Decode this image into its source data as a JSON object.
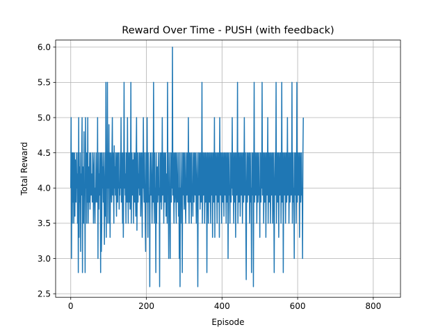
{
  "chart_data": {
    "type": "line",
    "title": "Reward Over Time - PUSH (with feedback)",
    "xlabel": "Episode",
    "ylabel": "Total Reward",
    "xlim": [
      -40,
      872
    ],
    "ylim": [
      2.45,
      6.1
    ],
    "xticks": [
      0,
      200,
      400,
      600,
      800
    ],
    "yticks": [
      2.5,
      3.0,
      3.5,
      4.0,
      4.5,
      5.0,
      5.5,
      6.0
    ],
    "grid": true,
    "line_color": "#1f77b4",
    "series": [
      {
        "x_start": 0,
        "x_step": 1,
        "values": [
          4.0,
          5.0,
          3.0,
          4.5,
          3.5,
          4.5,
          3.8,
          4.5,
          3.5,
          4.0,
          4.5,
          3.6,
          4.4,
          4.0,
          3.8,
          4.5,
          4.0,
          4.2,
          3.5,
          4.5,
          2.8,
          5.0,
          3.3,
          4.3,
          3.8,
          4.5,
          3.1,
          4.2,
          3.9,
          4.5,
          5.0,
          2.8,
          4.3,
          4.0,
          3.5,
          4.8,
          3.9,
          4.0,
          2.8,
          5.0,
          4.0,
          4.5,
          3.5,
          4.5,
          3.8,
          5.0,
          3.5,
          4.0,
          4.3,
          3.8,
          4.5,
          3.7,
          4.0,
          4.5,
          3.9,
          4.0,
          4.2,
          3.8,
          4.5,
          4.3,
          3.5,
          4.0,
          4.5,
          3.9,
          3.5,
          4.0,
          3.8,
          4.5,
          4.0,
          3.8,
          4.0,
          5.0,
          3.0,
          4.5,
          3.7,
          4.2,
          3.9,
          4.5,
          4.0,
          2.8,
          4.5,
          3.1,
          3.5,
          4.5,
          4.0,
          4.3,
          3.8,
          4.5,
          3.9,
          3.2,
          4.0,
          4.5,
          3.6,
          5.5,
          3.3,
          4.5,
          4.0,
          5.5,
          3.5,
          4.5,
          4.0,
          4.9,
          3.5,
          4.5,
          3.3,
          4.0,
          4.5,
          4.0,
          3.8,
          4.5,
          5.0,
          3.9,
          4.5,
          4.0,
          3.5,
          4.6,
          4.0,
          4.3,
          3.9,
          4.5,
          4.0,
          3.6,
          4.5,
          4.0,
          3.8,
          4.5,
          4.0,
          4.5,
          3.7,
          4.0,
          3.9,
          4.5,
          4.0,
          5.0,
          3.8,
          4.5,
          4.0,
          3.5,
          4.5,
          3.3,
          4.0,
          5.5,
          4.0,
          4.5,
          3.9,
          4.2,
          3.5,
          4.5,
          4.0,
          3.8,
          5.0,
          4.1,
          3.5,
          4.5,
          4.0,
          3.8,
          4.5,
          3.7,
          4.0,
          5.5,
          3.5,
          4.0,
          4.5,
          3.9,
          4.0,
          4.4,
          3.5,
          4.5,
          4.0,
          3.8,
          4.5,
          4.0,
          3.6,
          4.5,
          5.0,
          3.4,
          4.0,
          4.5,
          3.8,
          4.2,
          4.0,
          4.5,
          3.9,
          4.0,
          4.5,
          3.6,
          4.0,
          4.5,
          4.0,
          3.3,
          4.5,
          4.0,
          5.0,
          4.1,
          3.8,
          4.5,
          4.0,
          3.5,
          3.1,
          4.5,
          4.0,
          3.8,
          5.0,
          4.0,
          3.3,
          4.5,
          4.2,
          3.8,
          3.9,
          2.6,
          4.5,
          4.0,
          3.9,
          4.5,
          4.0,
          3.5,
          4.0,
          4.5,
          3.8,
          5.5,
          4.0,
          3.5,
          4.5,
          3.9,
          4.0,
          2.8,
          4.5,
          3.5,
          4.0,
          4.3,
          3.8,
          4.0,
          4.5,
          3.9,
          4.0,
          2.6,
          4.5,
          3.8,
          4.0,
          4.5,
          3.7,
          4.0,
          5.0,
          3.9,
          4.0,
          4.5,
          3.5,
          4.0,
          4.5,
          3.8,
          4.0,
          4.5,
          3.6,
          4.2,
          4.0,
          3.5,
          5.5,
          4.0,
          3.9,
          3.0,
          4.5,
          4.0,
          3.7,
          3.0,
          4.5,
          4.0,
          3.8,
          4.5,
          4.0,
          6.0,
          3.9,
          4.5,
          4.0,
          3.5,
          4.5,
          3.8,
          4.0,
          4.5,
          3.9,
          3.5,
          4.5,
          4.0,
          3.8,
          4.0,
          4.5,
          3.6,
          4.0,
          3.0,
          4.5,
          2.6,
          4.0,
          3.5,
          4.5,
          4.0,
          3.8,
          2.8,
          4.5,
          3.9,
          4.0,
          4.5,
          3.7,
          4.0,
          4.5,
          3.8,
          3.5,
          4.0,
          4.5,
          3.9,
          4.0,
          4.5,
          3.8,
          5.0,
          4.0,
          3.5,
          4.5,
          4.0,
          3.8,
          4.5,
          4.0,
          3.5,
          4.5,
          3.9,
          4.0,
          3.6,
          4.5,
          4.0,
          3.8,
          4.5,
          4.0,
          3.9,
          4.5,
          4.0,
          3.5,
          4.0,
          4.5,
          3.8,
          2.6,
          4.0,
          4.5,
          3.9,
          4.0,
          4.5,
          3.7,
          4.0,
          4.5,
          3.8,
          4.0,
          5.5,
          3.5,
          4.0,
          4.5,
          3.9,
          4.0,
          4.5,
          3.5,
          4.0,
          4.5,
          3.8,
          4.0,
          4.5,
          2.8,
          4.0,
          4.5,
          3.9,
          3.5,
          4.5,
          4.0,
          3.8,
          4.5,
          4.0,
          3.5,
          4.5,
          3.9,
          4.0,
          4.5,
          3.3,
          4.0,
          4.5,
          3.8,
          4.0,
          5.0,
          3.3,
          4.5,
          4.0,
          3.9,
          4.5,
          4.0,
          3.5,
          4.5,
          4.0,
          3.8,
          4.5,
          4.0,
          3.3,
          5.0,
          4.0,
          3.9,
          4.5,
          4.0,
          3.5,
          4.5,
          4.0,
          3.8,
          4.5,
          4.0,
          3.6,
          4.5,
          4.0,
          3.9,
          4.5,
          4.0,
          3.5,
          4.5,
          3.8,
          4.0,
          4.5,
          3.0,
          4.0,
          4.5,
          3.9,
          4.0,
          3.5,
          4.5,
          4.0,
          3.8,
          4.5,
          4.0,
          5.0,
          3.9,
          4.5,
          4.0,
          3.5,
          4.5,
          3.8,
          4.0,
          4.5,
          3.3,
          4.0,
          4.5,
          3.9,
          4.0,
          5.5,
          3.5,
          4.0,
          4.5,
          3.8,
          4.0,
          4.5,
          3.6,
          4.0,
          4.5,
          3.9,
          4.0,
          4.5,
          3.5,
          4.0,
          4.5,
          3.8,
          4.0,
          5.0,
          3.9,
          4.0,
          4.5,
          3.5,
          2.7,
          4.0,
          4.5,
          3.8,
          4.0,
          4.5,
          3.9,
          4.0,
          4.5,
          3.5,
          4.0,
          4.5,
          3.8,
          4.0,
          2.8,
          4.5,
          3.9,
          4.0,
          4.5,
          2.6,
          4.0,
          5.5,
          3.8,
          4.0,
          4.5,
          3.9,
          4.0,
          4.5,
          3.5,
          4.0,
          4.5,
          3.8,
          4.0,
          4.5,
          3.9,
          4.0,
          3.3,
          4.5,
          4.0,
          3.8,
          4.5,
          4.0,
          5.5,
          3.9,
          4.0,
          4.5,
          3.5,
          4.0,
          4.5,
          3.8,
          4.0,
          4.5,
          3.3,
          4.0,
          4.5,
          3.9,
          4.0,
          5.0,
          3.5,
          4.0,
          4.5,
          3.8,
          4.0,
          4.5,
          3.5,
          4.0,
          4.5,
          3.9,
          4.0,
          4.5,
          3.5,
          4.0,
          4.5,
          3.8,
          2.8,
          4.0,
          4.5,
          3.9,
          4.0,
          5.5,
          3.5,
          4.0,
          4.5,
          3.8,
          4.0,
          4.5,
          3.3,
          4.0,
          4.5,
          3.9,
          4.0,
          4.5,
          3.5,
          4.0,
          5.5,
          3.8,
          4.0,
          4.5,
          2.8,
          4.0,
          4.5,
          3.9,
          4.0,
          4.5,
          3.5,
          4.0,
          4.5,
          3.8,
          4.0,
          5.0,
          3.9,
          4.0,
          4.5,
          3.5,
          4.0,
          4.5,
          3.8,
          4.0,
          4.5,
          3.9,
          4.0,
          5.5,
          3.5,
          4.0,
          4.5,
          3.8,
          4.0,
          3.0,
          4.5,
          3.9,
          4.0,
          4.5,
          3.5,
          4.0,
          5.5,
          3.8,
          4.0,
          4.5,
          3.9,
          4.0,
          4.5,
          3.3,
          4.0,
          4.5,
          3.8,
          4.0,
          4.5,
          3.9,
          4.0,
          3.0,
          4.5,
          5.0
        ]
      }
    ]
  }
}
